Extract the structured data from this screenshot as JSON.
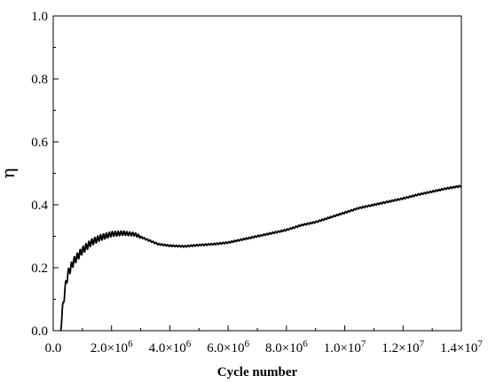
{
  "chart_data": {
    "type": "line",
    "title": "",
    "xlabel": "Cycle number",
    "ylabel": "η",
    "xlim": [
      0,
      14000000
    ],
    "ylim": [
      0,
      1.0
    ],
    "grid": false,
    "legend": "none",
    "line_color": "#000000",
    "x_ticks": [
      {
        "value": 0,
        "label": "0.0"
      },
      {
        "value": 2000000,
        "label": "2.0×10",
        "exp": "6"
      },
      {
        "value": 4000000,
        "label": "4.0×10",
        "exp": "6"
      },
      {
        "value": 6000000,
        "label": "6.0×10",
        "exp": "6"
      },
      {
        "value": 8000000,
        "label": "8.0×10",
        "exp": "6"
      },
      {
        "value": 10000000,
        "label": "1.0×10",
        "exp": "7"
      },
      {
        "value": 12000000,
        "label": "1.2×10",
        "exp": "7"
      },
      {
        "value": 14000000,
        "label": "1.4×10",
        "exp": "7"
      }
    ],
    "y_ticks": [
      {
        "value": 0.0,
        "label": "0.0"
      },
      {
        "value": 0.2,
        "label": "0.2"
      },
      {
        "value": 0.4,
        "label": "0.4"
      },
      {
        "value": 0.6,
        "label": "0.6"
      },
      {
        "value": 0.8,
        "label": "0.8"
      },
      {
        "value": 1.0,
        "label": "1.0"
      }
    ],
    "series": [
      {
        "x": [
          250000,
          300000,
          400000,
          500000,
          700000,
          1000000,
          1300000,
          1600000,
          2000000,
          2400000,
          2800000,
          3200000,
          3600000,
          4000000,
          4500000,
          5000000,
          5500000,
          6000000,
          6500000,
          7000000,
          7500000,
          8000000,
          8500000,
          9000000,
          9500000,
          10000000,
          10500000,
          11000000,
          11500000,
          12000000,
          12500000,
          13000000,
          13500000,
          14000000
        ],
        "y": [
          0.0,
          0.05,
          0.13,
          0.18,
          0.22,
          0.255,
          0.28,
          0.295,
          0.307,
          0.31,
          0.306,
          0.29,
          0.275,
          0.27,
          0.268,
          0.272,
          0.275,
          0.28,
          0.29,
          0.3,
          0.31,
          0.32,
          0.335,
          0.345,
          0.36,
          0.375,
          0.39,
          0.4,
          0.41,
          0.42,
          0.432,
          0.442,
          0.452,
          0.46
        ]
      }
    ]
  }
}
